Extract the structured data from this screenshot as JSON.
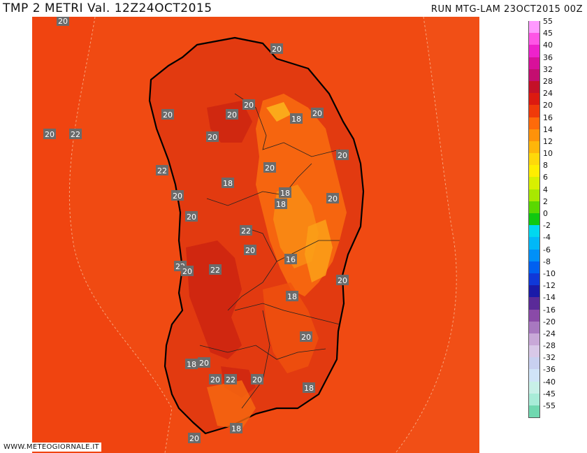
{
  "header": {
    "title": "TMP 2 METRI Val. 12Z24OCT2015",
    "run_info": "RUN MTG-LAM 23OCT2015 00Z"
  },
  "credit": "WWW.METEOGIORNALE.IT",
  "legend": [
    {
      "label": "55",
      "color": "#ff99ff"
    },
    {
      "label": "45",
      "color": "#ff55e6"
    },
    {
      "label": "40",
      "color": "#ee22cc"
    },
    {
      "label": "36",
      "color": "#d8109a"
    },
    {
      "label": "32",
      "color": "#c40e70"
    },
    {
      "label": "28",
      "color": "#c41028"
    },
    {
      "label": "24",
      "color": "#dc1a10"
    },
    {
      "label": "20",
      "color": "#f03a0a"
    },
    {
      "label": "16",
      "color": "#ff6a0a"
    },
    {
      "label": "14",
      "color": "#ff920a"
    },
    {
      "label": "12",
      "color": "#ffb60a"
    },
    {
      "label": "10",
      "color": "#ffd80a"
    },
    {
      "label": "8",
      "color": "#ffee00"
    },
    {
      "label": "6",
      "color": "#d8f000"
    },
    {
      "label": "4",
      "color": "#a8e800"
    },
    {
      "label": "2",
      "color": "#5ad800"
    },
    {
      "label": "0",
      "color": "#10c810"
    },
    {
      "label": "-2",
      "color": "#00d8f0"
    },
    {
      "label": "-4",
      "color": "#00b8f8"
    },
    {
      "label": "-6",
      "color": "#0090f8"
    },
    {
      "label": "-8",
      "color": "#0060f0"
    },
    {
      "label": "-10",
      "color": "#1038d8"
    },
    {
      "label": "-12",
      "color": "#1a1aa8"
    },
    {
      "label": "-14",
      "color": "#5a2a98"
    },
    {
      "label": "-16",
      "color": "#8a4aa8"
    },
    {
      "label": "-20",
      "color": "#a878c0"
    },
    {
      "label": "-24",
      "color": "#c8a8d8"
    },
    {
      "label": "-28",
      "color": "#d8c8e8"
    },
    {
      "label": "-32",
      "color": "#c8d0f0"
    },
    {
      "label": "-36",
      "color": "#d0e4f8"
    },
    {
      "label": "-40",
      "color": "#c8f0e8"
    },
    {
      "label": "-45",
      "color": "#a8ecd8"
    },
    {
      "label": "-55",
      "color": "#70d8b0"
    }
  ],
  "isotherm_labels": [
    {
      "value": "20"
    },
    {
      "value": "20"
    },
    {
      "value": "20"
    },
    {
      "value": "22"
    },
    {
      "value": "20"
    },
    {
      "value": "18"
    },
    {
      "value": "20"
    },
    {
      "value": "20"
    },
    {
      "value": "20"
    },
    {
      "value": "20"
    },
    {
      "value": "22"
    },
    {
      "value": "20"
    },
    {
      "value": "20"
    },
    {
      "value": "18"
    },
    {
      "value": "18"
    },
    {
      "value": "20"
    },
    {
      "value": "20"
    },
    {
      "value": "20"
    },
    {
      "value": "22"
    },
    {
      "value": "18"
    },
    {
      "value": "20"
    },
    {
      "value": "22"
    },
    {
      "value": "22"
    },
    {
      "value": "16"
    },
    {
      "value": "20"
    },
    {
      "value": "20"
    },
    {
      "value": "18"
    },
    {
      "value": "20"
    },
    {
      "value": "18"
    },
    {
      "value": "20"
    },
    {
      "value": "20"
    },
    {
      "value": "22"
    },
    {
      "value": "20"
    },
    {
      "value": "18"
    },
    {
      "value": "18"
    },
    {
      "value": "20"
    }
  ]
}
